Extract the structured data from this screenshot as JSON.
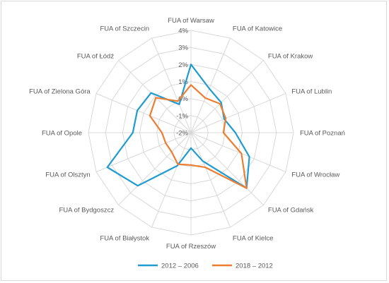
{
  "chart_data": {
    "type": "radar",
    "title": "",
    "categories": [
      "FUA of Warsaw",
      "FUA of Katowice",
      "FUA of Krakow",
      "FUA of Lublin",
      "FUA of Poznań",
      "FUA of Wrocław",
      "FUA of Gdańsk",
      "FUA of Kielce",
      "FUA of Rzeszów",
      "FUA of Białystok",
      "FUA of Bydgoszcz",
      "FUA of Olsztyn",
      "FUA of Opole",
      "FUA of Zielona Góra",
      "FUA of Łódź",
      "FUA of Szczecin"
    ],
    "r_ticks": [
      "4%",
      "3%",
      "2%",
      "1%",
      "0%",
      "-1%",
      "-2%"
    ],
    "rlim": [
      -2,
      4
    ],
    "series": [
      {
        "name": "2012 – 2006",
        "color": "#1f9bd0",
        "values": [
          2.0,
          0.8,
          0.5,
          0.1,
          0.6,
          1.7,
          2.6,
          -0.2,
          -1.1,
          0.1,
          2.4,
          3.3,
          1.4,
          1.4,
          1.3,
          -0.2
        ]
      },
      {
        "name": "2018 – 2012",
        "color": "#ed7d31",
        "values": [
          0.8,
          0.2,
          0.4,
          0.2,
          -0.1,
          1.2,
          2.6,
          0.2,
          -0.1,
          0.0,
          -0.4,
          -0.4,
          -0.3,
          0.6,
          0.9,
          0.0
        ]
      }
    ],
    "grid": true,
    "legend_position": "bottom"
  }
}
